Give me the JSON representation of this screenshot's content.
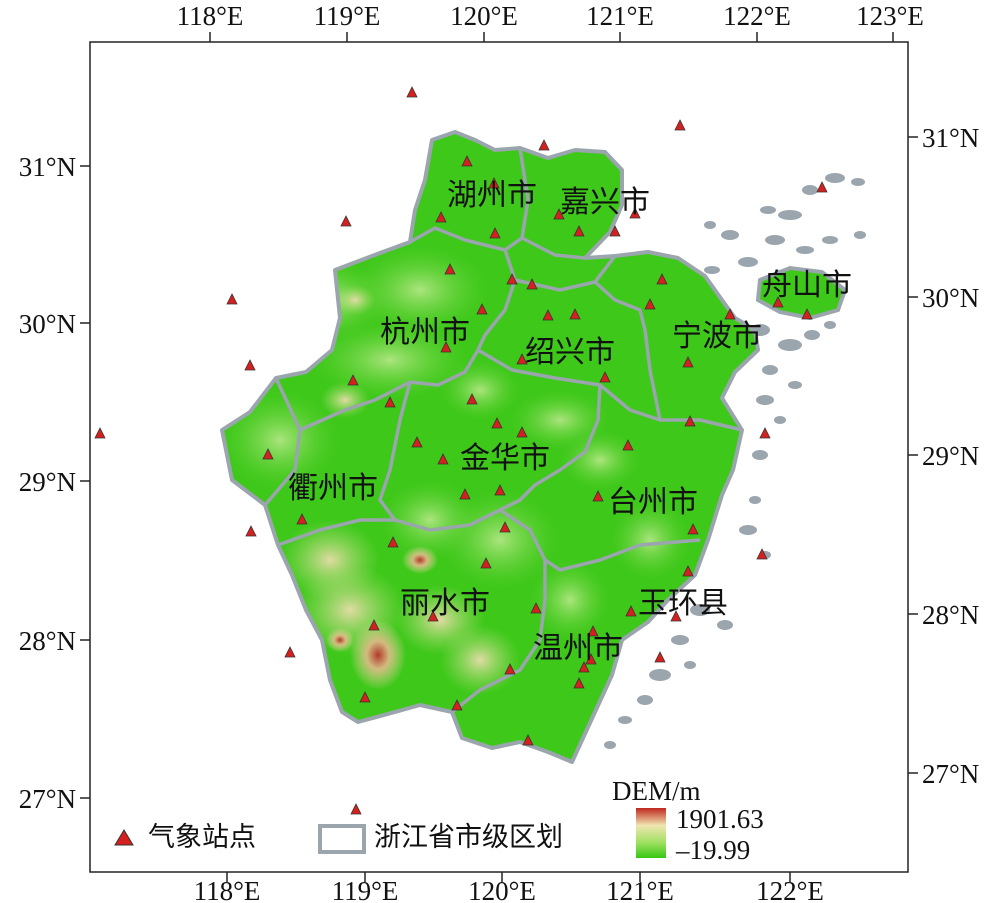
{
  "map": {
    "top_ticks": [
      "118°E",
      "119°E",
      "120°E",
      "121°E",
      "122°E",
      "123°E"
    ],
    "bottom_ticks": [
      "118°E",
      "119°E",
      "120°E",
      "121°E",
      "122°E"
    ],
    "left_ticks": [
      "31°N",
      "30°N",
      "29°N",
      "28°N",
      "27°N"
    ],
    "right_ticks": [
      "31°N",
      "30°N",
      "29°N",
      "28°N",
      "27°N"
    ],
    "cities": [
      {
        "name": "湖州市"
      },
      {
        "name": "嘉兴市"
      },
      {
        "name": "舟山市"
      },
      {
        "name": "杭州市"
      },
      {
        "name": "绍兴市"
      },
      {
        "name": "宁波市"
      },
      {
        "name": "金华市"
      },
      {
        "name": "衢州市"
      },
      {
        "name": "台州市"
      },
      {
        "name": "丽水市"
      },
      {
        "name": "玉环县"
      },
      {
        "name": "温州市"
      }
    ],
    "colors": {
      "lowland": "#3ec81a",
      "midland": "#a6dc6e",
      "highland": "#e8d9a6",
      "peak": "#b8322a",
      "boundary": "#9aa5ad",
      "station": "#d62020"
    }
  },
  "legend": {
    "station_label": "气象站点",
    "boundary_label": "浙江省市级区划",
    "dem_title": "DEM/m",
    "dem_max": "1901.63",
    "dem_min": "–19.99"
  }
}
